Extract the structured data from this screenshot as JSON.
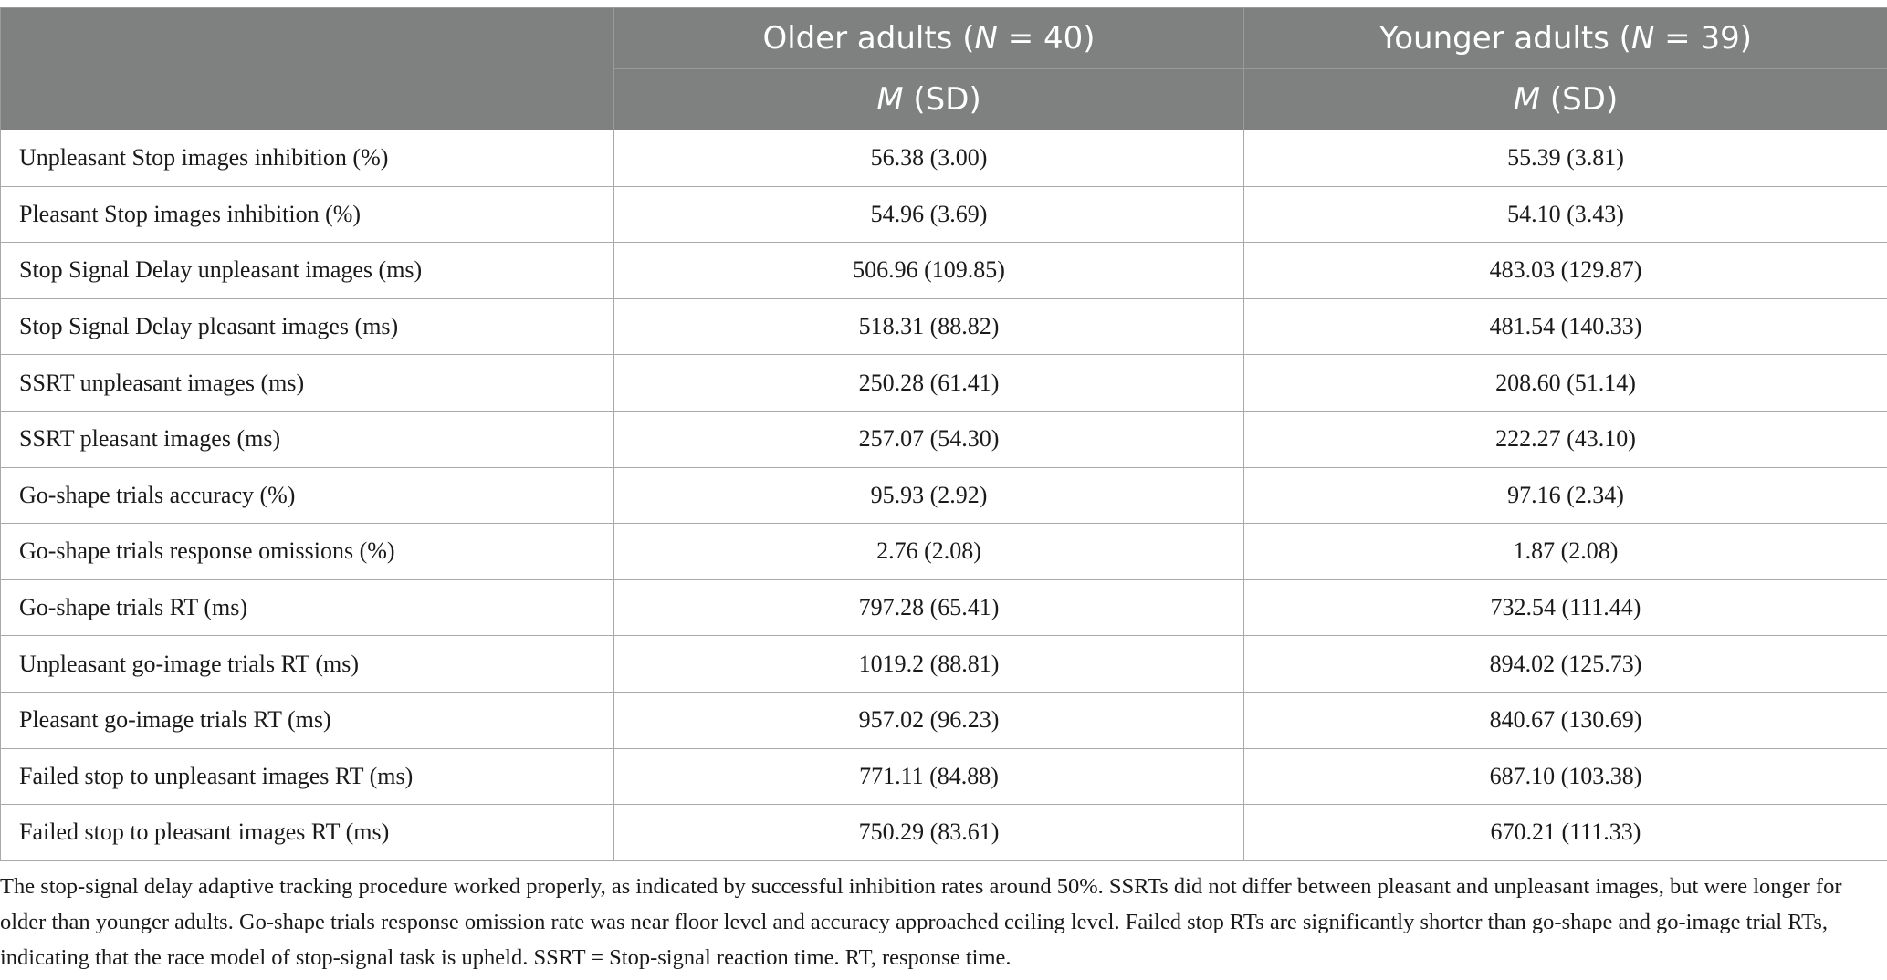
{
  "table": {
    "header": {
      "group_1": {
        "prefix": "Older adults (",
        "n_label": "N",
        "suffix": " = 40)"
      },
      "group_2": {
        "prefix": "Younger adults (",
        "n_label": "N",
        "suffix": " = 39)"
      },
      "stat_1": {
        "m_label": "M",
        "sd_label": " (SD)"
      },
      "stat_2": {
        "m_label": "M",
        "sd_label": " (SD)"
      }
    },
    "rows": [
      {
        "label": "Unpleasant Stop images inhibition (%)",
        "older": "56.38 (3.00)",
        "younger": "55.39 (3.81)"
      },
      {
        "label": "Pleasant Stop images inhibition (%)",
        "older": "54.96 (3.69)",
        "younger": "54.10 (3.43)"
      },
      {
        "label": "Stop Signal Delay unpleasant images (ms)",
        "older": "506.96 (109.85)",
        "younger": "483.03 (129.87)"
      },
      {
        "label": "Stop Signal Delay pleasant images (ms)",
        "older": "518.31 (88.82)",
        "younger": "481.54 (140.33)"
      },
      {
        "label": "SSRT unpleasant images (ms)",
        "older": "250.28 (61.41)",
        "younger": "208.60 (51.14)"
      },
      {
        "label": "SSRT pleasant images (ms)",
        "older": "257.07 (54.30)",
        "younger": "222.27 (43.10)"
      },
      {
        "label": "Go-shape trials accuracy (%)",
        "older": "95.93 (2.92)",
        "younger": "97.16 (2.34)"
      },
      {
        "label": "Go-shape trials response omissions (%)",
        "older": "2.76 (2.08)",
        "younger": "1.87 (2.08)"
      },
      {
        "label": "Go-shape trials RT (ms)",
        "older": "797.28 (65.41)",
        "younger": "732.54 (111.44)"
      },
      {
        "label": "Unpleasant go-image trials RT (ms)",
        "older": "1019.2 (88.81)",
        "younger": "894.02 (125.73)"
      },
      {
        "label": "Pleasant go-image trials RT (ms)",
        "older": "957.02 (96.23)",
        "younger": "840.67 (130.69)"
      },
      {
        "label": "Failed stop to unpleasant images RT (ms)",
        "older": "771.11 (84.88)",
        "younger": "687.10 (103.38)"
      },
      {
        "label": "Failed stop to pleasant images RT (ms)",
        "older": "750.29 (83.61)",
        "younger": "670.21 (111.33)"
      }
    ]
  },
  "footnote": "The stop-signal delay adaptive tracking procedure worked properly, as indicated by successful inhibition rates around 50%. SSRTs did not differ between pleasant and unpleasant images, but were longer for older than younger adults. Go-shape trials response omission rate was near floor level and accuracy approached ceiling level. Failed stop RTs are significantly shorter than go-shape and go-image trial RTs, indicating that the race model of stop-signal task is upheld. SSRT = Stop-signal reaction time. RT, response time.",
  "colors": {
    "header_bg": "#7f8080",
    "header_text": "#ffffff",
    "border": "#a9a9a9"
  }
}
